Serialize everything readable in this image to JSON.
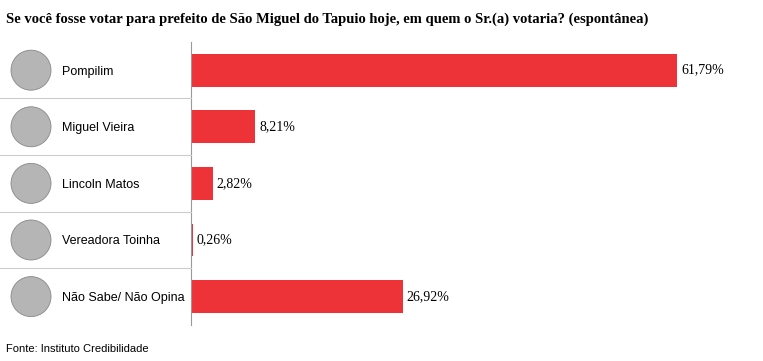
{
  "chart_data": {
    "type": "bar",
    "orientation": "horizontal",
    "title": "Se você fosse votar para prefeito de São Miguel do Tapuio hoje, em quem o Sr.(a) votaria? (espontânea)",
    "categories": [
      "Pompilim",
      "Miguel Vieira",
      "Lincoln Matos",
      "Vereadora Toinha",
      "Não Sabe/ Não Opina"
    ],
    "values": [
      61.79,
      8.21,
      2.82,
      0.26,
      26.92
    ],
    "value_labels": [
      "61,79%",
      "8,21%",
      "2,82%",
      "0,26%",
      "26,92%"
    ],
    "color": "#ee3338",
    "data_labels": true,
    "tick_labels": "y",
    "annotations": [
      "Fonte: Instituto Credibilidade"
    ]
  }
}
